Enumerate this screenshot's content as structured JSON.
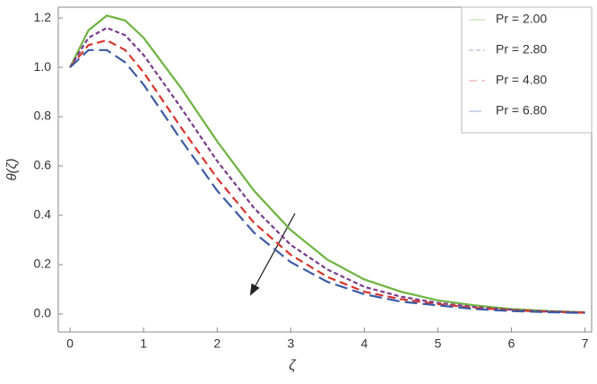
{
  "chart_data": {
    "type": "line",
    "x_label": "ζ",
    "y_label": "θ(ζ)",
    "x": [
      0,
      0.25,
      0.5,
      0.75,
      1,
      1.5,
      2,
      2.5,
      3,
      3.5,
      4,
      4.5,
      5,
      5.5,
      6,
      6.5,
      7
    ],
    "series": [
      {
        "name": "Pr = 2.00",
        "color": "#6db33f",
        "dash": "none",
        "values": [
          1.0,
          1.15,
          1.21,
          1.19,
          1.12,
          0.92,
          0.7,
          0.5,
          0.34,
          0.22,
          0.14,
          0.09,
          0.055,
          0.035,
          0.02,
          0.012,
          0.007
        ]
      },
      {
        "name": "Pr = 2.80",
        "color": "#7b3a8c",
        "dash": "5,3",
        "values": [
          1.0,
          1.12,
          1.16,
          1.13,
          1.05,
          0.84,
          0.62,
          0.43,
          0.28,
          0.18,
          0.11,
          0.07,
          0.045,
          0.028,
          0.017,
          0.01,
          0.006
        ]
      },
      {
        "name": "Pr = 4.80",
        "color": "#d9342b",
        "dash": "9,5",
        "values": [
          1.0,
          1.09,
          1.11,
          1.07,
          0.98,
          0.76,
          0.55,
          0.37,
          0.24,
          0.15,
          0.09,
          0.06,
          0.04,
          0.025,
          0.015,
          0.009,
          0.005
        ]
      },
      {
        "name": "Pr = 6.80",
        "color": "#3b5ba5",
        "dash": "14,6",
        "values": [
          1.0,
          1.07,
          1.07,
          1.02,
          0.93,
          0.71,
          0.5,
          0.33,
          0.21,
          0.13,
          0.08,
          0.05,
          0.035,
          0.02,
          0.012,
          0.007,
          0.004
        ]
      }
    ],
    "xlim": [
      -0.16,
      7.09
    ],
    "ylim": [
      -0.073,
      1.244
    ],
    "xticks": [
      0,
      1,
      2,
      3,
      4,
      5,
      6,
      7
    ],
    "yticks": [
      {
        "value": 0,
        "label": "0.0"
      },
      {
        "value": 0.2,
        "label": "0.2"
      },
      {
        "value": 0.4,
        "label": "0.4"
      },
      {
        "value": 0.6,
        "label": "0.6"
      },
      {
        "value": 0.8,
        "label": "0.8"
      },
      {
        "value": 1.0,
        "label": "1.0"
      },
      {
        "value": 1.2,
        "label": "1.2"
      }
    ],
    "legend": "upper right"
  }
}
